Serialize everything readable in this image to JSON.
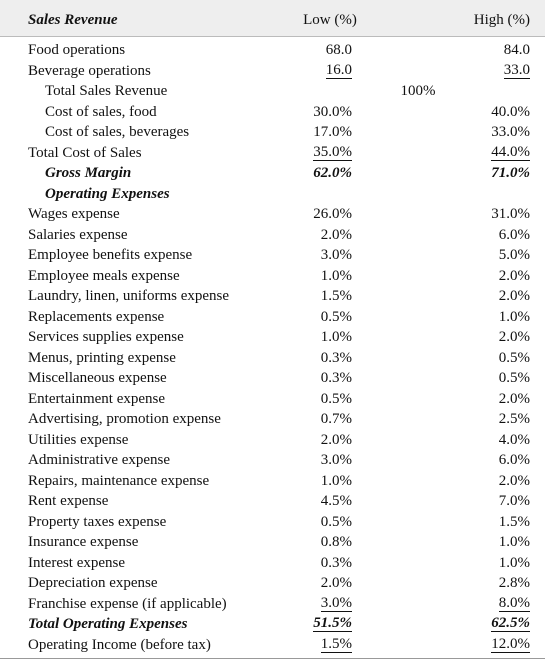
{
  "header": {
    "label": "Sales Revenue",
    "low": "Low (%)",
    "high": "High (%)"
  },
  "rows": [
    {
      "label": "Food operations",
      "low": "68.0",
      "high": "84.0"
    },
    {
      "label": "Beverage operations",
      "low": "16.0",
      "high": "33.0"
    },
    {
      "label": "Total Sales Revenue",
      "middle": "100%"
    },
    {
      "label": "Cost of sales, food",
      "low": "30.0%",
      "high": "40.0%"
    },
    {
      "label": "Cost of sales, beverages",
      "low": "17.0%",
      "high": "33.0%"
    },
    {
      "label": "Total Cost of Sales",
      "low": "35.0%",
      "high": "44.0%"
    },
    {
      "label": "Gross Margin",
      "low": "62.0%",
      "high": "71.0%"
    },
    {
      "label": "Operating Expenses"
    },
    {
      "label": "Wages expense",
      "low": "26.0%",
      "high": "31.0%"
    },
    {
      "label": "Salaries expense",
      "low": "2.0%",
      "high": "6.0%"
    },
    {
      "label": "Employee benefits expense",
      "low": "3.0%",
      "high": "5.0%"
    },
    {
      "label": "Employee meals expense",
      "low": "1.0%",
      "high": "2.0%"
    },
    {
      "label": "Laundry, linen, uniforms expense",
      "low": "1.5%",
      "high": "2.0%"
    },
    {
      "label": "Replacements expense",
      "low": "0.5%",
      "high": "1.0%"
    },
    {
      "label": "Services supplies expense",
      "low": "1.0%",
      "high": "2.0%"
    },
    {
      "label": "Menus, printing expense",
      "low": "0.3%",
      "high": "0.5%"
    },
    {
      "label": "Miscellaneous expense",
      "low": "0.3%",
      "high": "0.5%"
    },
    {
      "label": "Entertainment expense",
      "low": "0.5%",
      "high": "2.0%"
    },
    {
      "label": "Advertising, promotion expense",
      "low": "0.7%",
      "high": "2.5%"
    },
    {
      "label": "Utilities expense",
      "low": "2.0%",
      "high": "4.0%"
    },
    {
      "label": "Administrative expense",
      "low": "3.0%",
      "high": "6.0%"
    },
    {
      "label": "Repairs, maintenance expense",
      "low": "1.0%",
      "high": "2.0%"
    },
    {
      "label": "Rent expense",
      "low": "4.5%",
      "high": "7.0%"
    },
    {
      "label": "Property taxes expense",
      "low": "0.5%",
      "high": "1.5%"
    },
    {
      "label": "Insurance expense",
      "low": "0.8%",
      "high": "1.0%"
    },
    {
      "label": "Interest expense",
      "low": "0.3%",
      "high": "1.0%"
    },
    {
      "label": "Depreciation expense",
      "low": "2.0%",
      "high": "2.8%"
    },
    {
      "label": "Franchise expense (if applicable)",
      "low": "3.0%",
      "high": "8.0%"
    },
    {
      "label": "Total Operating Expenses",
      "low": "51.5%",
      "high": "62.5%"
    },
    {
      "label": "Operating Income (before tax)",
      "low": "1.5%",
      "high": "12.0%"
    }
  ]
}
